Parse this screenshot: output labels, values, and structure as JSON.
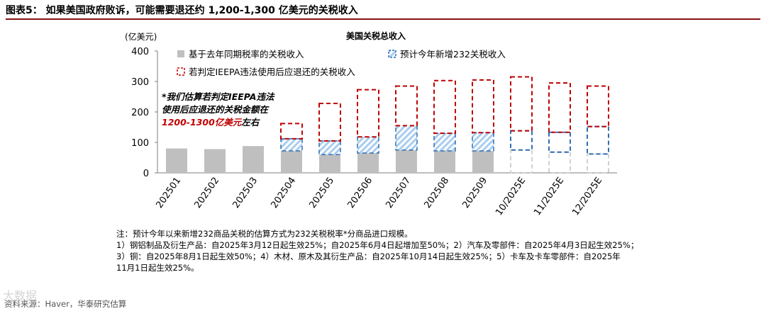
{
  "figure_title": "图表5：  如果美国政府败诉，可能需要退还约 1,200-1,300 亿美元的关税收入",
  "notes": [
    "注：预计今年以来新增232商品关税的估算方式为232关税税率*分商品进口规模。",
    "1）钢铝制品及衍生产品：自2025年3月12日起生效25%；自2025年6月4日起增加至50%；2）汽车及零部件：自2025年4月3日起生效25%；",
    "3）铜：自2025年8月1日起生效50%；4）木材、原木及其衍生产品：自2025年10月14日起生效25%；5）卡车及卡车零部件：自2025年",
    "11月1日起生效25%。"
  ],
  "source": "资料来源：Haver，华泰研究估算",
  "watermark": "大数据",
  "colors": {
    "base": "#bfbfbf",
    "s232": "#2f6eb5",
    "s232_fill": "#a9cdee",
    "ieepa": "#c00000",
    "title_rule": "#8a1212",
    "annotation_red": "#c00000"
  },
  "chart_data": {
    "type": "bar",
    "title": "美国关税总收入",
    "ylabel": "(亿美元)",
    "ylim": [
      0,
      400
    ],
    "yticks": [
      0,
      100,
      200,
      300,
      400
    ],
    "categories": [
      "202501",
      "202502",
      "202503",
      "202504",
      "202505",
      "202506",
      "202507",
      "202508",
      "202509",
      "10/2025E",
      "11/2025E",
      "12/2025E"
    ],
    "estimated": [
      false,
      false,
      false,
      false,
      false,
      false,
      false,
      false,
      false,
      true,
      true,
      true
    ],
    "series": [
      {
        "name": "基于去年同期税率的关税收入",
        "values": [
          80,
          78,
          88,
          72,
          60,
          65,
          75,
          72,
          72,
          75,
          68,
          62
        ]
      },
      {
        "name": "预计今年新增232关税收入",
        "values": [
          0,
          0,
          0,
          40,
          45,
          53,
          80,
          58,
          60,
          63,
          65,
          90
        ]
      },
      {
        "name": "若判定IEEPA违法使用后应退还的关税收入",
        "values": [
          0,
          0,
          0,
          50,
          123,
          155,
          130,
          173,
          173,
          177,
          162,
          133
        ]
      }
    ],
    "annotation": {
      "lines": [
        "*我们估算若判定IEEPA违法",
        "使用后应退还的关税金额在"
      ],
      "highlight": "1200-1300亿美元",
      "suffix": "左右"
    },
    "legend_position": "top-left",
    "grid": false
  }
}
